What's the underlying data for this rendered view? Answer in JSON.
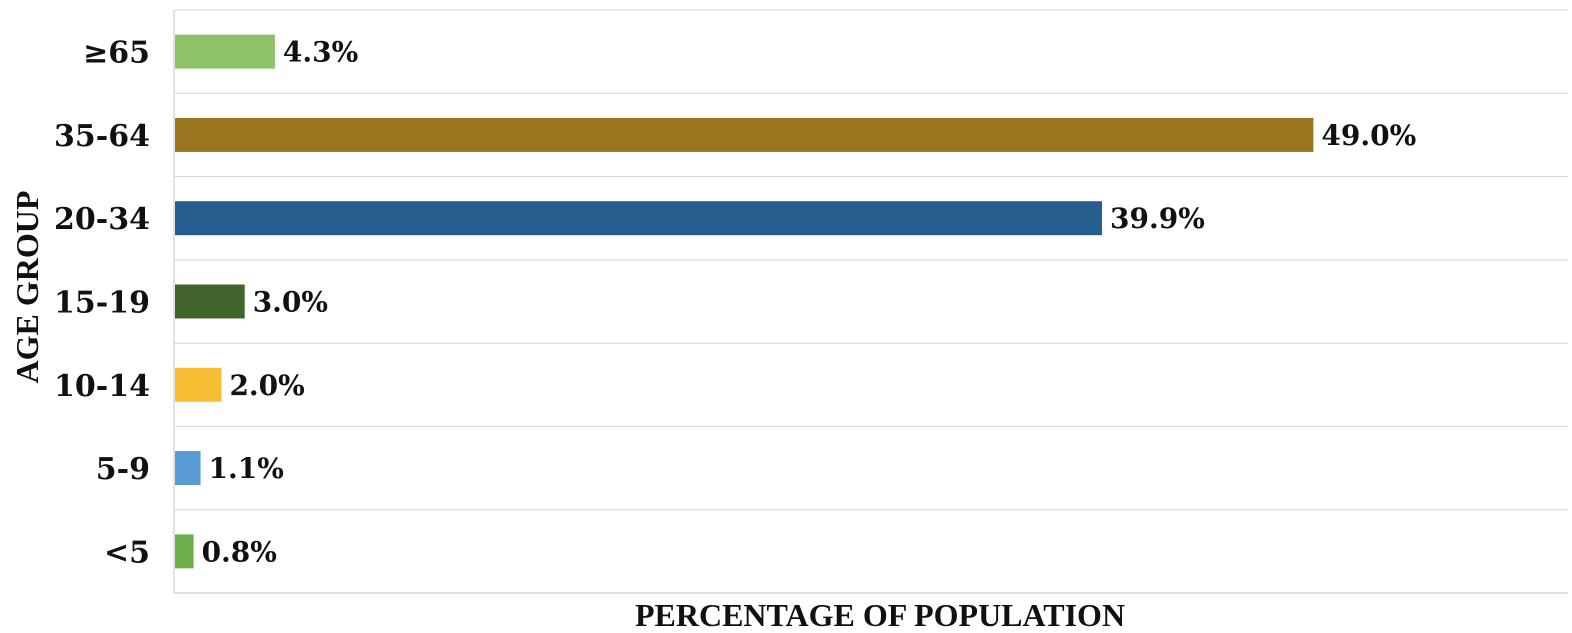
{
  "chart_data": {
    "type": "bar",
    "orientation": "horizontal",
    "title": "",
    "xlabel": "PERCENTAGE OF POPULATION",
    "ylabel": "AGE GROUP",
    "categories": [
      "≥65",
      "35-64",
      "20-34",
      "15-19",
      "10-14",
      "5-9",
      "<5"
    ],
    "values": [
      4.3,
      49.0,
      39.9,
      3.0,
      2.0,
      1.1,
      0.8
    ],
    "value_labels": [
      "4.3%",
      "49.0%",
      "39.9%",
      "3.0%",
      "2.0%",
      "1.1%",
      "0.8%"
    ],
    "colors": [
      "#8dc26a",
      "#9b761f",
      "#265f8f",
      "#3f652b",
      "#f7bd33",
      "#5b9bd5",
      "#6cae4a"
    ],
    "xlim": [
      0,
      60
    ],
    "grid": "horizontal",
    "legend": "none"
  }
}
